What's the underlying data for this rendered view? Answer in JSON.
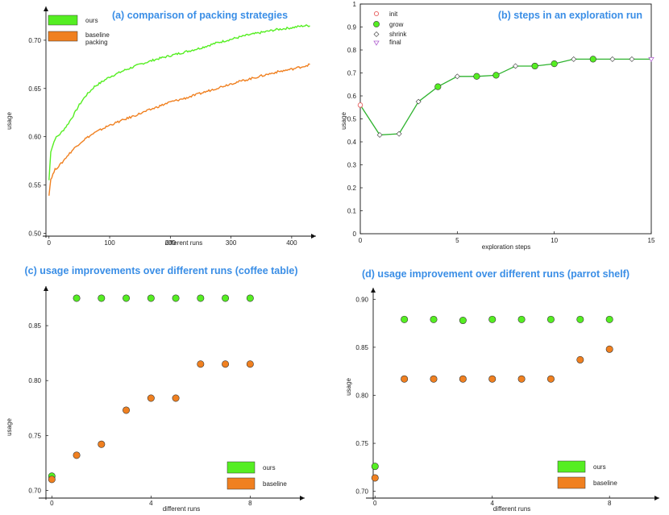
{
  "colors": {
    "ours": "#55ee22",
    "baseline": "#f08020",
    "title": "#3a8ee6",
    "init": "#e86060",
    "final": "#b060d0"
  },
  "chart_data": [
    {
      "type": "line",
      "title": "(a) comparison of packing strategies",
      "xlabel": "different runs",
      "ylabel": "usage",
      "xlim": [
        -5,
        440
      ],
      "ylim": [
        0.497,
        0.735
      ],
      "xticks": [
        "0",
        "100",
        "200",
        "300",
        "400"
      ],
      "yticks": [
        "0.50",
        "0.55",
        "0.60",
        "0.65",
        "0.70"
      ],
      "legend": [
        "ours",
        "baseline packing"
      ],
      "series": [
        {
          "name": "ours",
          "x": [
            0,
            3,
            10,
            20,
            30,
            40,
            50,
            60,
            75,
            100,
            125,
            150,
            175,
            200,
            225,
            250,
            275,
            300,
            325,
            350,
            375,
            400,
            420,
            430
          ],
          "y": [
            0.555,
            0.585,
            0.598,
            0.604,
            0.612,
            0.622,
            0.633,
            0.642,
            0.652,
            0.662,
            0.669,
            0.675,
            0.68,
            0.684,
            0.688,
            0.692,
            0.697,
            0.701,
            0.705,
            0.708,
            0.711,
            0.713,
            0.715,
            0.715
          ]
        },
        {
          "name": "baseline packing",
          "x": [
            0,
            3,
            10,
            20,
            30,
            40,
            50,
            60,
            75,
            100,
            125,
            150,
            175,
            200,
            225,
            250,
            275,
            300,
            325,
            350,
            375,
            400,
            420,
            430
          ],
          "y": [
            0.54,
            0.556,
            0.566,
            0.572,
            0.58,
            0.587,
            0.593,
            0.598,
            0.604,
            0.612,
            0.618,
            0.624,
            0.63,
            0.636,
            0.64,
            0.645,
            0.65,
            0.655,
            0.659,
            0.663,
            0.667,
            0.67,
            0.673,
            0.675
          ]
        }
      ]
    },
    {
      "type": "line",
      "title": "(b) steps in an exploration run",
      "xlabel": "exploration steps",
      "ylabel": "usage",
      "xlim": [
        0,
        15
      ],
      "ylim": [
        0,
        1
      ],
      "xticks": [
        "0",
        "5",
        "10",
        "15"
      ],
      "yticks": [
        "0",
        "0.1",
        "0.2",
        "0.3",
        "0.4",
        "0.5",
        "0.6",
        "0.7",
        "0.8",
        "0.9",
        "1"
      ],
      "legend": [
        "init",
        "grow",
        "shrink",
        "final"
      ],
      "x": [
        0,
        1,
        2,
        3,
        4,
        5,
        6,
        7,
        8,
        9,
        10,
        11,
        12,
        13,
        14,
        15
      ],
      "values": [
        0.56,
        0.43,
        0.435,
        0.575,
        0.64,
        0.685,
        0.685,
        0.69,
        0.73,
        0.73,
        0.74,
        0.76,
        0.76,
        0.76,
        0.76,
        0.76
      ],
      "step_types": [
        "init",
        "shrink",
        "shrink",
        "shrink",
        "grow",
        "shrink",
        "grow",
        "grow",
        "shrink",
        "grow",
        "grow",
        "shrink",
        "grow",
        "shrink",
        "shrink",
        "final"
      ]
    },
    {
      "type": "scatter",
      "title": "(c) usage improvements over different runs (coffee table)",
      "xlabel": "different runs",
      "ylabel": "usage",
      "xlim": [
        -0.4,
        10.2
      ],
      "ylim": [
        0.693,
        0.886
      ],
      "xticks": [
        "0",
        "4",
        "8"
      ],
      "yticks": [
        "0.70",
        "0.75",
        "0.80",
        "0.85"
      ],
      "legend": [
        "ours",
        "baseline"
      ],
      "series": [
        {
          "name": "ours",
          "x": [
            0,
            1,
            2,
            3,
            4,
            5,
            6,
            7,
            8
          ],
          "values": [
            0.713,
            0.875,
            0.875,
            0.875,
            0.875,
            0.875,
            0.875,
            0.875,
            0.875
          ]
        },
        {
          "name": "baseline",
          "x": [
            0,
            1,
            2,
            3,
            4,
            5,
            6,
            7,
            8
          ],
          "values": [
            0.71,
            0.732,
            0.742,
            0.773,
            0.784,
            0.784,
            0.815,
            0.815,
            0.815
          ]
        }
      ]
    },
    {
      "type": "scatter",
      "title": "(d) usage improvement over different runs (parrot shelf)",
      "xlabel": "different runs",
      "ylabel": "usage",
      "xlim": [
        -0.2,
        9.7
      ],
      "ylim": [
        0.693,
        0.912
      ],
      "xticks": [
        "0",
        "4",
        "8"
      ],
      "yticks": [
        "0.70",
        "0.75",
        "0.80",
        "0.85",
        "0.90"
      ],
      "legend": [
        "ours",
        "baseline"
      ],
      "series": [
        {
          "name": "ours",
          "x": [
            0,
            1,
            2,
            3,
            4,
            5,
            6,
            7,
            8
          ],
          "values": [
            0.726,
            0.879,
            0.879,
            0.878,
            0.879,
            0.879,
            0.879,
            0.879,
            0.879
          ]
        },
        {
          "name": "baseline",
          "x": [
            0,
            1,
            2,
            3,
            4,
            5,
            6,
            7,
            8
          ],
          "values": [
            0.714,
            0.817,
            0.817,
            0.817,
            0.817,
            0.817,
            0.817,
            0.837,
            0.848
          ]
        }
      ]
    }
  ]
}
